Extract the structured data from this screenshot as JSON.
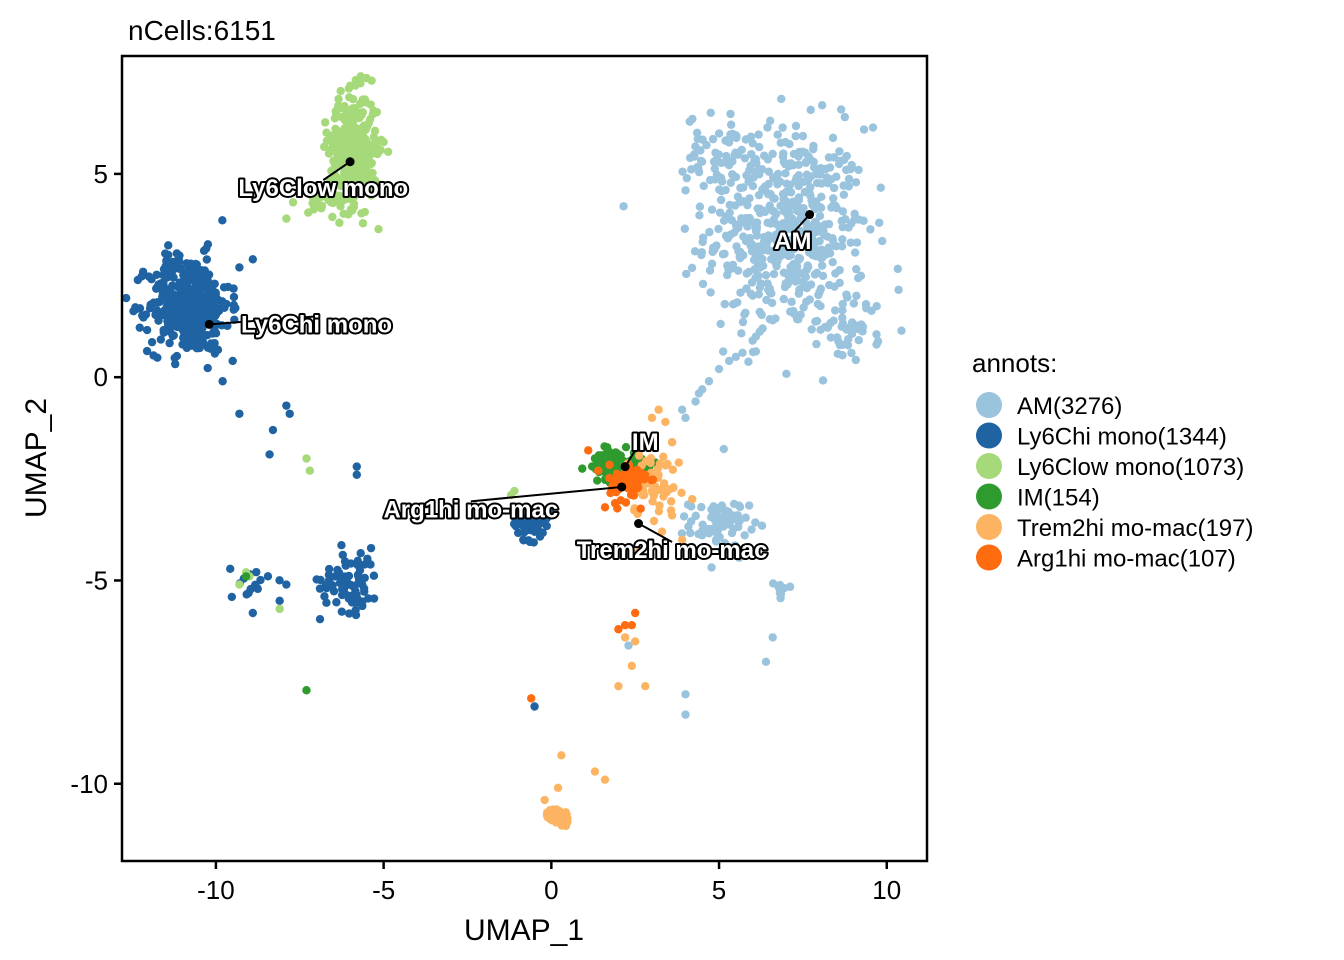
{
  "chart_data": {
    "type": "scatter",
    "title": "nCells:6151",
    "xlabel": "UMAP_1",
    "ylabel": "UMAP_2",
    "xlim": [
      -12.8,
      11.2
    ],
    "ylim": [
      -11.9,
      7.9
    ],
    "x_ticks": [
      -10,
      -5,
      0,
      5,
      10
    ],
    "y_ticks": [
      -10,
      -5,
      0,
      5
    ],
    "x_tick_labels": [
      "-10",
      "-5",
      "0",
      "5",
      "10"
    ],
    "y_tick_labels": [
      "-10",
      "-5",
      "0",
      "5"
    ],
    "grid": false,
    "legend_title": "annots:",
    "legend_position": "right",
    "series": [
      {
        "name": "AM(3276)",
        "label": "AM",
        "color": "#9ac3de",
        "count": 3276,
        "centroid": [
          7.7,
          4.0
        ],
        "clusters": [
          {
            "center": [
              7.0,
              3.6
            ],
            "sx": 1.5,
            "sy": 1.6,
            "n": 520
          },
          {
            "center": [
              5.0,
              5.5
            ],
            "sx": 0.6,
            "sy": 0.6,
            "n": 60
          },
          {
            "center": [
              9.0,
              1.2
            ],
            "sx": 0.6,
            "sy": 0.5,
            "n": 40
          },
          {
            "center": [
              5.0,
              -3.6
            ],
            "sx": 0.55,
            "sy": 0.35,
            "n": 70
          },
          {
            "center": [
              6.9,
              -5.3
            ],
            "sx": 0.15,
            "sy": 0.25,
            "n": 8
          }
        ],
        "points": [
          [
            3.6,
            -1.6
          ],
          [
            4.0,
            -1.0
          ],
          [
            4.3,
            -0.6
          ],
          [
            4.7,
            -0.1
          ],
          [
            5.0,
            0.2
          ],
          [
            5.3,
            0.4
          ],
          [
            5.7,
            0.6
          ],
          [
            6.0,
            0.9
          ],
          [
            6.3,
            1.2
          ],
          [
            6.6,
            1.4
          ],
          [
            3.9,
            -0.8
          ],
          [
            4.5,
            -0.3
          ],
          [
            6.6,
            -6.4
          ],
          [
            6.4,
            -7.0
          ],
          [
            4.0,
            -7.8
          ],
          [
            4.0,
            -8.3
          ],
          [
            2.3,
            -6.6
          ],
          [
            4.4,
            -0.4
          ],
          [
            5.5,
            0.5
          ],
          [
            6.1,
            1.0
          ]
        ]
      },
      {
        "name": "Ly6Chi mono(1344)",
        "label": "Ly6Chi mono",
        "color": "#1f63a3",
        "count": 1344,
        "centroid": [
          -10.2,
          1.3
        ],
        "clusters": [
          {
            "center": [
              -10.8,
              1.8
            ],
            "sx": 0.75,
            "sy": 0.75,
            "n": 420
          },
          {
            "center": [
              -6.0,
              -5.0
            ],
            "sx": 0.55,
            "sy": 0.5,
            "n": 70
          },
          {
            "center": [
              -0.6,
              -3.6
            ],
            "sx": 0.35,
            "sy": 0.25,
            "n": 50
          },
          {
            "center": [
              -9.0,
              -5.1
            ],
            "sx": 0.35,
            "sy": 0.3,
            "n": 15
          }
        ],
        "points": [
          [
            -9.3,
            -0.9
          ],
          [
            -7.8,
            -0.9
          ],
          [
            -7.9,
            -0.7
          ],
          [
            -8.3,
            -1.3
          ],
          [
            -8.4,
            -1.9
          ],
          [
            -5.8,
            -2.2
          ],
          [
            -5.8,
            -2.4
          ],
          [
            -9.3,
            2.7
          ],
          [
            -8.9,
            2.9
          ],
          [
            -9.5,
            0.4
          ],
          [
            -8.9,
            -5.8
          ],
          [
            -8.1,
            -5.5
          ],
          [
            -7.9,
            -5.1
          ],
          [
            -0.5,
            -8.1
          ],
          [
            -9.8,
            -0.1
          ]
        ]
      },
      {
        "name": "Ly6Clow mono(1073)",
        "label": "Ly6Clow mono",
        "color": "#a6d979",
        "count": 1073,
        "centroid": [
          -6.0,
          5.3
        ],
        "clusters": [
          {
            "center": [
              -5.9,
              5.6
            ],
            "sx": 0.45,
            "sy": 0.85,
            "n": 340
          },
          {
            "center": [
              -6.8,
              4.4
            ],
            "sx": 0.35,
            "sy": 0.2,
            "n": 25
          }
        ],
        "points": [
          [
            -7.9,
            3.9
          ],
          [
            -7.3,
            -2.0
          ],
          [
            -7.2,
            -2.3
          ],
          [
            -9.1,
            -4.8
          ],
          [
            -9.0,
            -4.9
          ],
          [
            -9.3,
            -5.1
          ],
          [
            -8.1,
            -5.7
          ],
          [
            -7.7,
            4.3
          ],
          [
            -1.2,
            -2.9
          ],
          [
            -1.1,
            -2.8
          ]
        ]
      },
      {
        "name": "IM(154)",
        "label": "IM",
        "color": "#2f9b2f",
        "count": 154,
        "centroid": [
          2.2,
          -2.2
        ],
        "clusters": [
          {
            "center": [
              2.0,
              -2.2
            ],
            "sx": 0.45,
            "sy": 0.25,
            "n": 110
          }
        ],
        "points": [
          [
            -7.3,
            -7.7
          ],
          [
            -9.1,
            -4.9
          ],
          [
            1.3,
            -2.0
          ],
          [
            3.1,
            -2.1
          ]
        ]
      },
      {
        "name": "Trem2hi mo-mac(197)",
        "label": "Trem2hi mo-mac",
        "color": "#fdb462",
        "count": 197,
        "centroid": [
          2.6,
          -3.6
        ],
        "clusters": [
          {
            "center": [
              0.2,
              -10.8
            ],
            "sx": 0.2,
            "sy": 0.12,
            "n": 60
          },
          {
            "center": [
              3.0,
              -2.6
            ],
            "sx": 0.5,
            "sy": 0.5,
            "n": 60
          }
        ],
        "points": [
          [
            3.4,
            -1.1
          ],
          [
            3.2,
            -0.8
          ],
          [
            3.0,
            -1.0
          ],
          [
            3.6,
            -1.6
          ],
          [
            3.8,
            -2.1
          ],
          [
            4.2,
            -3.0
          ],
          [
            3.6,
            -3.4
          ],
          [
            3.3,
            -3.8
          ],
          [
            2.2,
            -6.4
          ],
          [
            2.5,
            -6.5
          ],
          [
            2.4,
            -7.1
          ],
          [
            2.0,
            -7.6
          ],
          [
            2.8,
            -7.6
          ],
          [
            0.3,
            -9.3
          ],
          [
            1.3,
            -9.7
          ],
          [
            0.2,
            -10.1
          ],
          [
            -0.2,
            -10.4
          ],
          [
            1.6,
            -9.9
          ],
          [
            2.6,
            -4.3
          ],
          [
            3.9,
            -4.0
          ]
        ]
      },
      {
        "name": "Arg1hi mo-mac(107)",
        "label": "Arg1hi mo-mac",
        "color": "#ff6b0f",
        "count": 107,
        "centroid": [
          2.1,
          -2.7
        ],
        "clusters": [
          {
            "center": [
              2.3,
              -2.6
            ],
            "sx": 0.35,
            "sy": 0.3,
            "n": 75
          }
        ],
        "points": [
          [
            2.5,
            -5.8
          ],
          [
            2.4,
            -6.1
          ],
          [
            2.2,
            -6.1
          ],
          [
            2.0,
            -6.2
          ],
          [
            -0.6,
            -7.9
          ],
          [
            1.1,
            -1.8
          ],
          [
            1.4,
            -2.3
          ],
          [
            1.6,
            -3.2
          ],
          [
            1.9,
            -3.1
          ]
        ]
      }
    ],
    "labels": [
      {
        "text": "AM",
        "series": 0,
        "x": 7.2,
        "y": 3.35
      },
      {
        "text": "Ly6Chi mono",
        "series": 1,
        "x": -7.0,
        "y": 1.3
      },
      {
        "text": "Ly6Clow mono",
        "series": 2,
        "x": -6.8,
        "y": 4.65
      },
      {
        "text": "IM",
        "series": 3,
        "x": 2.8,
        "y": -1.6
      },
      {
        "text": "Arg1hi mo-mac",
        "series": 5,
        "x": -2.4,
        "y": -3.25
      },
      {
        "text": "Trem2hi mo-mac",
        "series": 4,
        "x": 3.6,
        "y": -4.25
      }
    ]
  }
}
